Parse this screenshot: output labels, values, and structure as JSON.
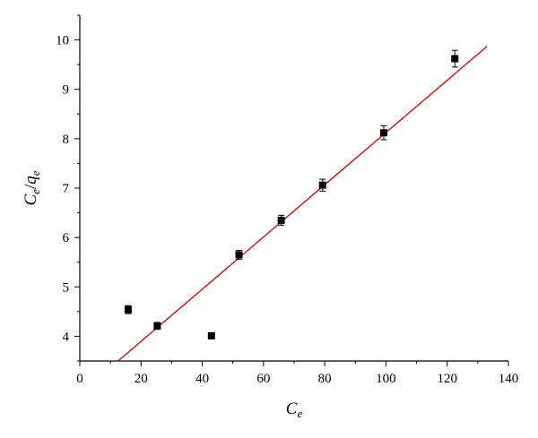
{
  "chart_data": {
    "type": "scatter",
    "title": "",
    "xlabel": {
      "base": "C",
      "sub": "e"
    },
    "ylabel": {
      "base1": "C",
      "sub1": "e",
      "slash": "/",
      "base2": "q",
      "sub2": "e"
    },
    "xlim": [
      0,
      140
    ],
    "ylim": [
      3.5,
      10.5
    ],
    "x_ticks": [
      0,
      20,
      40,
      60,
      80,
      100,
      120,
      140
    ],
    "y_ticks": [
      4,
      5,
      6,
      7,
      8,
      9,
      10
    ],
    "grid": false,
    "legend": "none",
    "series": [
      {
        "marker": "square",
        "color": "#000000",
        "points": [
          {
            "x": 15.8,
            "y": 4.54,
            "err": 0.08
          },
          {
            "x": 25.3,
            "y": 4.21,
            "err": 0.07
          },
          {
            "x": 43.0,
            "y": 4.01,
            "err": 0.05
          },
          {
            "x": 52.0,
            "y": 5.65,
            "err": 0.09
          },
          {
            "x": 65.8,
            "y": 6.35,
            "err": 0.1
          },
          {
            "x": 79.3,
            "y": 7.06,
            "err": 0.12
          },
          {
            "x": 99.3,
            "y": 8.12,
            "err": 0.14
          },
          {
            "x": 122.5,
            "y": 9.62,
            "err": 0.17
          }
        ]
      }
    ],
    "fit_line": {
      "color": "#d00000",
      "x": [
        12.5,
        133.0
      ],
      "y": [
        3.5,
        9.87
      ]
    }
  }
}
